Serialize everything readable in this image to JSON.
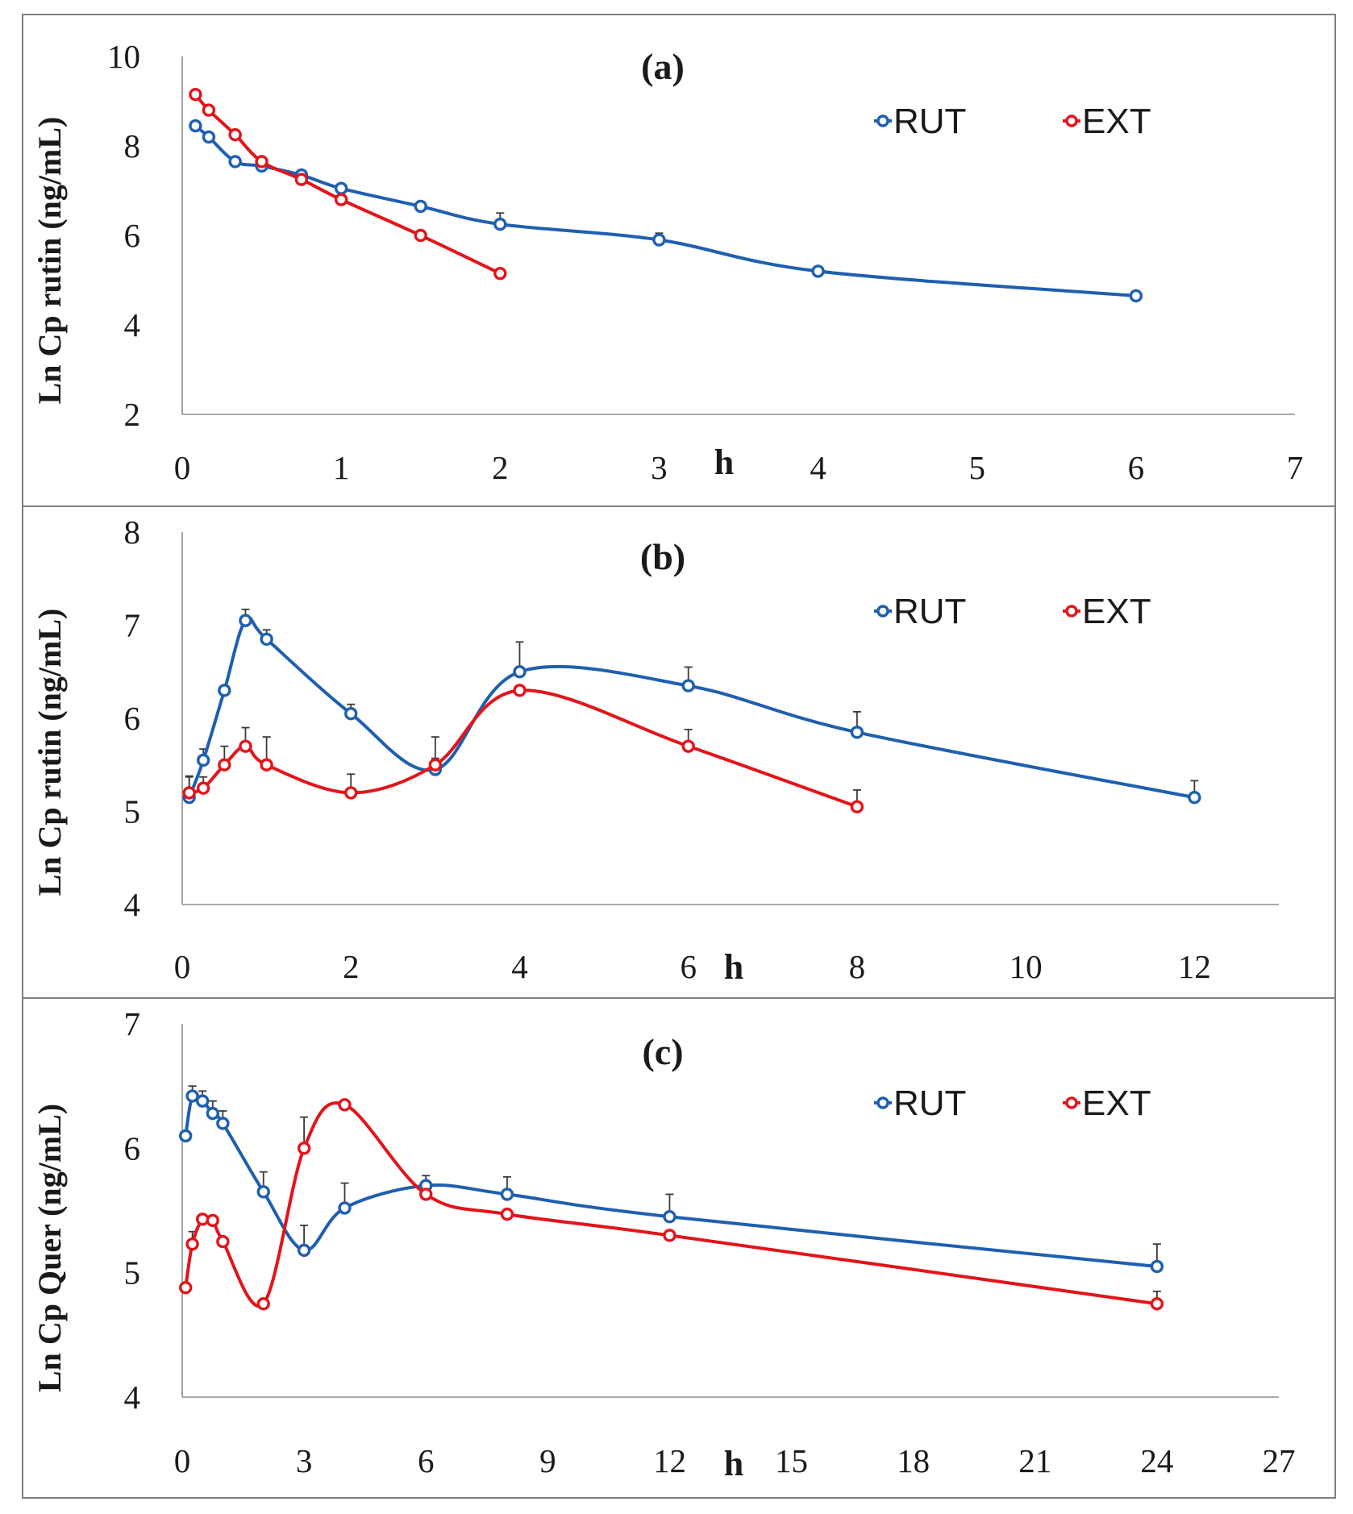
{
  "colors": {
    "RUT": "#1f5fb0",
    "EXT": "#e3141a",
    "axis": "#8c8c8c",
    "frame": "#7f7f7f"
  },
  "chart_data": [
    {
      "type": "line",
      "title": "(a)",
      "ylabel": "Ln Cp rutin (ng/mL)",
      "xlabel": "h",
      "xlim": [
        0,
        7
      ],
      "ylim": [
        2,
        10
      ],
      "xticks": [
        "0",
        "1",
        "2",
        "3",
        "4",
        "5",
        "6",
        "7"
      ],
      "yticks": [
        "2",
        "4",
        "6",
        "8",
        "10"
      ],
      "legend": "top-right",
      "series": [
        {
          "name": "RUT",
          "x": [
            0.083,
            0.167,
            0.333,
            0.5,
            0.75,
            1,
            1.5,
            2,
            3,
            4,
            6
          ],
          "y": [
            8.45,
            8.2,
            7.65,
            7.55,
            7.35,
            7.05,
            6.65,
            6.25,
            5.9,
            5.2,
            4.65
          ],
          "err": [
            0,
            0,
            0,
            0,
            0,
            0,
            0,
            0.25,
            0.15,
            0,
            0
          ]
        },
        {
          "name": "EXT",
          "x": [
            0.083,
            0.167,
            0.333,
            0.5,
            0.75,
            1,
            1.5,
            2
          ],
          "y": [
            9.15,
            8.8,
            8.25,
            7.65,
            7.25,
            6.8,
            6.0,
            5.15
          ],
          "err": [
            0,
            0,
            0,
            0,
            0,
            0,
            0,
            0
          ]
        }
      ]
    },
    {
      "type": "line",
      "title": "(b)",
      "ylabel": "Ln Cp rutin (ng/mL)",
      "xlabel": "h",
      "xlim": [
        0,
        13
      ],
      "ylim": [
        4,
        8
      ],
      "xticks": [
        "0",
        "2",
        "4",
        "6",
        "8",
        "10",
        "12"
      ],
      "yticks": [
        "4",
        "5",
        "6",
        "7",
        "8"
      ],
      "legend": "top-right",
      "series": [
        {
          "name": "RUT",
          "x": [
            0.083,
            0.25,
            0.5,
            0.75,
            1,
            2,
            3,
            4,
            6,
            8,
            12
          ],
          "y": [
            5.15,
            5.55,
            6.3,
            7.05,
            6.85,
            6.05,
            5.45,
            6.5,
            6.35,
            5.85,
            5.15
          ],
          "err": [
            0.22,
            0.12,
            0.05,
            0.12,
            0.1,
            0.1,
            0.12,
            0.32,
            0.2,
            0.22,
            0.18
          ]
        },
        {
          "name": "EXT",
          "x": [
            0.083,
            0.25,
            0.5,
            0.75,
            1,
            2,
            3,
            4,
            6,
            8
          ],
          "y": [
            5.2,
            5.25,
            5.5,
            5.7,
            5.5,
            5.2,
            5.5,
            6.3,
            5.7,
            5.05
          ],
          "err": [
            0.18,
            0.12,
            0.2,
            0.2,
            0.3,
            0.2,
            0.3,
            0,
            0.18,
            0.18
          ]
        }
      ]
    },
    {
      "type": "line",
      "title": "(c)",
      "ylabel": "Ln Cp Quer (ng/mL)",
      "xlabel": "h",
      "xlim": [
        0,
        27
      ],
      "ylim": [
        4,
        7
      ],
      "xticks": [
        "0",
        "3",
        "6",
        "9",
        "12",
        "15",
        "18",
        "21",
        "24",
        "27"
      ],
      "yticks": [
        "4",
        "5",
        "6",
        "7"
      ],
      "legend": "top-right",
      "series": [
        {
          "name": "RUT",
          "x": [
            0.083,
            0.25,
            0.5,
            0.75,
            1,
            2,
            3,
            4,
            6,
            8,
            12,
            24
          ],
          "y": [
            6.1,
            6.42,
            6.38,
            6.28,
            6.2,
            5.65,
            5.18,
            5.52,
            5.7,
            5.63,
            5.45,
            5.05
          ],
          "err": [
            0,
            0.08,
            0.08,
            0.1,
            0.1,
            0.16,
            0.2,
            0.2,
            0.08,
            0.14,
            0.18,
            0.18
          ]
        },
        {
          "name": "EXT",
          "x": [
            0.083,
            0.25,
            0.5,
            0.75,
            1,
            2,
            3,
            4,
            6,
            8,
            12,
            24
          ],
          "y": [
            4.88,
            5.23,
            5.43,
            5.42,
            5.25,
            4.75,
            6.0,
            6.35,
            5.63,
            5.47,
            5.3,
            4.75
          ],
          "err": [
            0,
            0.1,
            0,
            0,
            0,
            0,
            0.25,
            0,
            0,
            0,
            0,
            0.1
          ]
        }
      ]
    }
  ]
}
